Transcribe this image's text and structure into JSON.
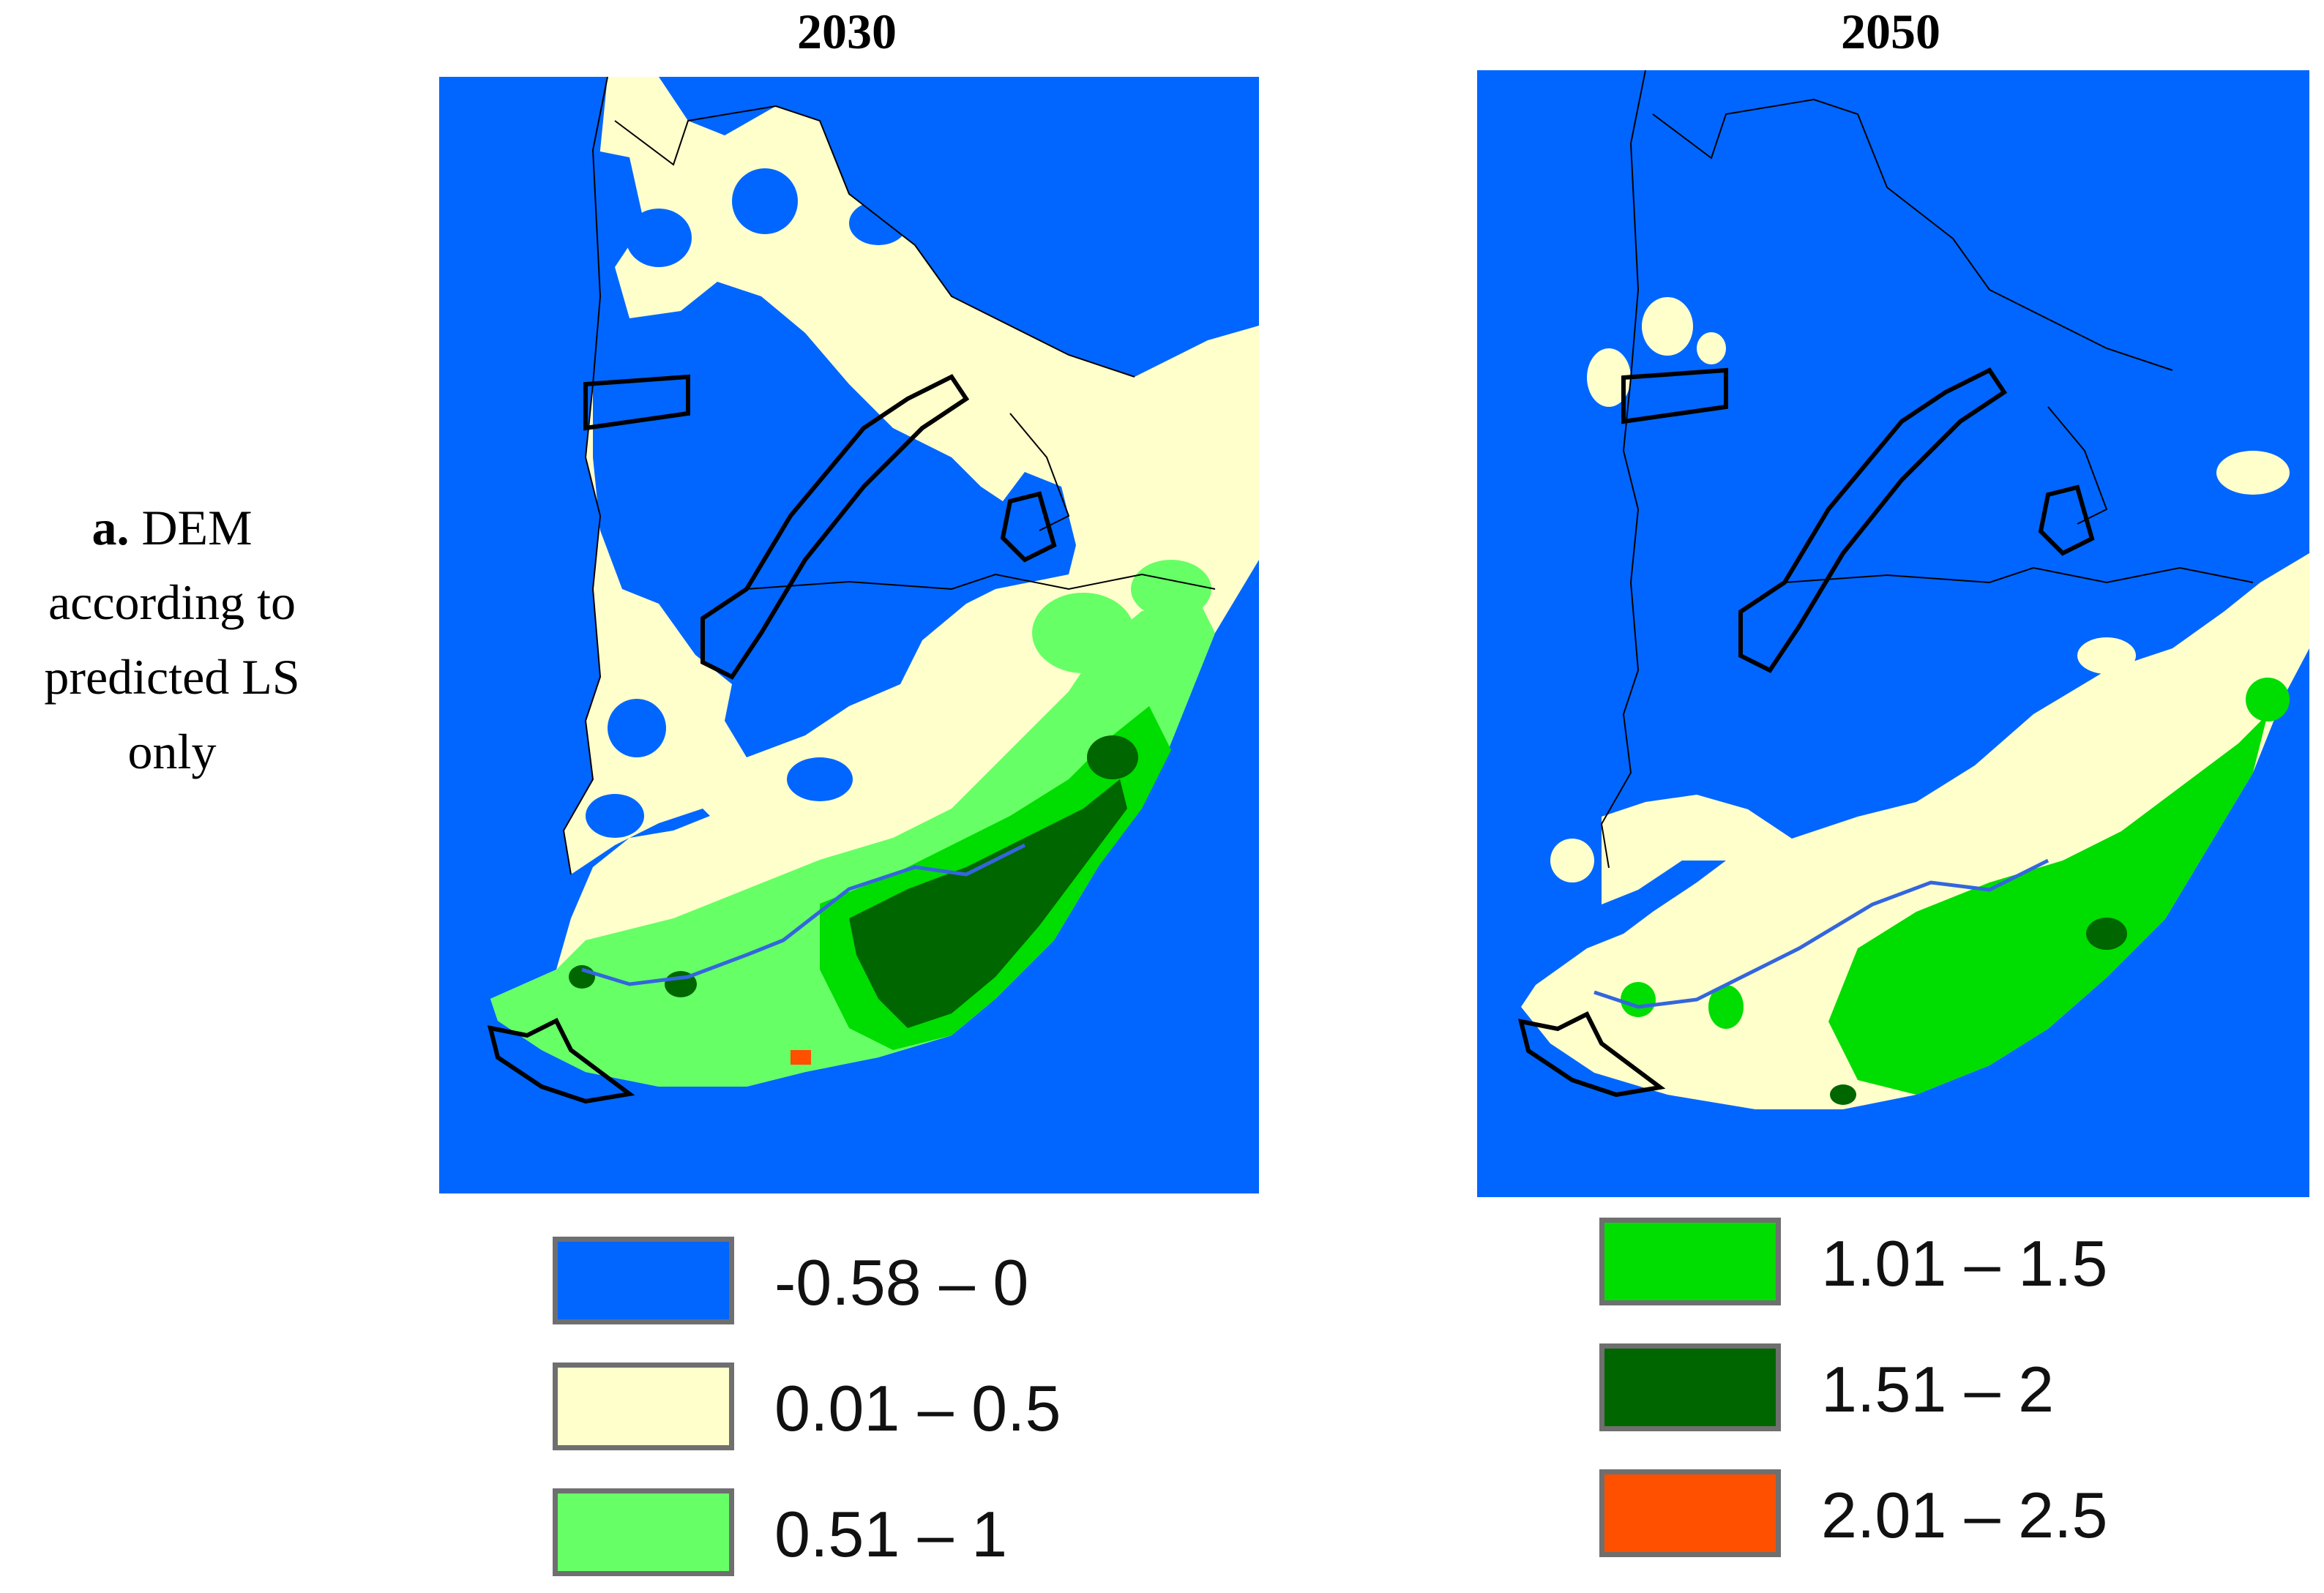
{
  "figure": {
    "row_label_bold": "a.",
    "row_label_text": "DEM according to predicted LS only"
  },
  "maps": [
    {
      "title": "2030"
    },
    {
      "title": "2050"
    }
  ],
  "legend": [
    {
      "label": "-0.58 – 0",
      "color": "#0066ff"
    },
    {
      "label": "0.01 – 0.5",
      "color": "#ffffcc"
    },
    {
      "label": "0.51 – 1",
      "color": "#66ff66"
    },
    {
      "label": "1.01 – 1.5",
      "color": "#00dd00"
    },
    {
      "label": "1.51 – 2",
      "color": "#006600"
    },
    {
      "label": "2.01 – 2.5",
      "color": "#ff5000"
    }
  ],
  "colors": {
    "sea": "#0066ff",
    "boundary": "#000000",
    "river": "#3366dd"
  }
}
